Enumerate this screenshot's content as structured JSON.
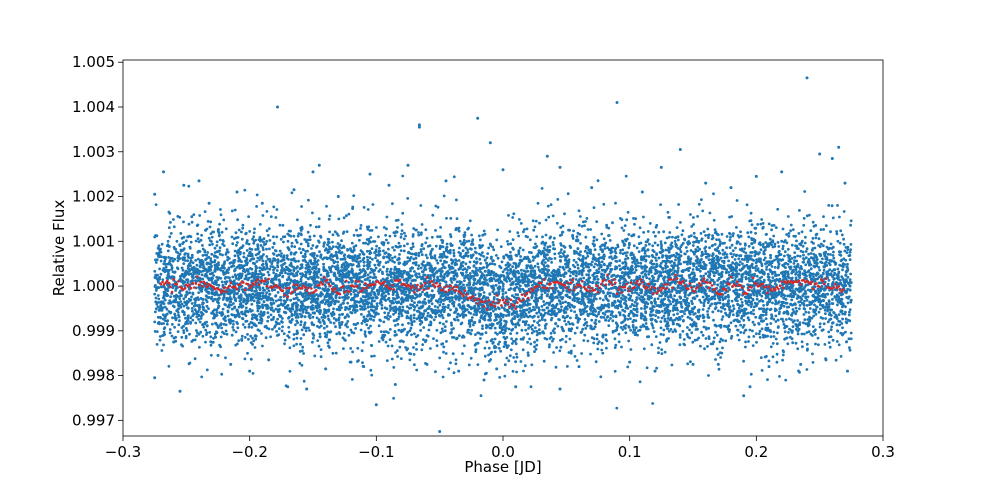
{
  "chart_data": {
    "type": "scatter",
    "title": "",
    "xlabel": "Phase [JD]",
    "ylabel": "Relative Flux",
    "xlim": [
      -0.3,
      0.3
    ],
    "ylim": [
      0.99665,
      1.00505
    ],
    "grid": false,
    "legend": "none",
    "x_ticks": [
      -0.3,
      -0.2,
      -0.1,
      0.0,
      0.1,
      0.2,
      0.3
    ],
    "x_tick_labels": [
      "−0.3",
      "−0.2",
      "−0.1",
      "0.0",
      "0.1",
      "0.2",
      "0.3"
    ],
    "y_ticks": [
      0.997,
      0.998,
      0.999,
      1.0,
      1.001,
      1.002,
      1.003,
      1.004,
      1.005
    ],
    "y_tick_labels": [
      "0.997",
      "0.998",
      "0.999",
      "1.000",
      "1.001",
      "1.002",
      "1.003",
      "1.004",
      "1.005"
    ],
    "series": [
      {
        "color": "#1f77b4",
        "description_of_distribution": {
          "x_range": [
            -0.275,
            0.275
          ],
          "center_flux": 1.0,
          "scatter_sigma": 0.00065
        },
        "points": [
          [
            -0.275,
            1.00205
          ],
          [
            -0.275,
            0.99795
          ],
          [
            -0.268,
            1.00255
          ],
          [
            -0.26,
            0.99875
          ],
          [
            -0.255,
            0.99765
          ],
          [
            -0.252,
            1.00225
          ],
          [
            -0.24,
            1.00235
          ],
          [
            -0.232,
            1.00185
          ],
          [
            -0.225,
            0.99845
          ],
          [
            -0.215,
            0.99825
          ],
          [
            -0.21,
            1.0021
          ],
          [
            -0.2,
            0.9981
          ],
          [
            -0.19,
            1.00185
          ],
          [
            -0.185,
            0.99835
          ],
          [
            -0.178,
            1.004
          ],
          [
            -0.17,
            0.99775
          ],
          [
            -0.165,
            1.00215
          ],
          [
            -0.155,
            0.9977
          ],
          [
            -0.15,
            1.00255
          ],
          [
            -0.145,
            1.0027
          ],
          [
            -0.14,
            0.99815
          ],
          [
            -0.13,
            1.002
          ],
          [
            -0.12,
            0.9983
          ],
          [
            -0.11,
            0.9982
          ],
          [
            -0.105,
            1.0025
          ],
          [
            -0.1,
            0.99735
          ],
          [
            -0.09,
            1.00225
          ],
          [
            -0.085,
            0.9978
          ],
          [
            -0.075,
            1.0027
          ],
          [
            -0.066,
            1.0036
          ],
          [
            -0.066,
            1.00355
          ],
          [
            -0.06,
            0.99825
          ],
          [
            -0.05,
            0.99675
          ],
          [
            -0.045,
            1.00235
          ],
          [
            -0.035,
            0.9981
          ],
          [
            -0.02,
            1.00375
          ],
          [
            -0.015,
            0.9979
          ],
          [
            -0.01,
            1.0032
          ],
          [
            -0.005,
            0.99815
          ],
          [
            0.0,
            1.0026
          ],
          [
            0.01,
            0.99775
          ],
          [
            0.02,
            0.99845
          ],
          [
            0.035,
            1.0029
          ],
          [
            0.045,
            0.9977
          ],
          [
            0.045,
            1.00265
          ],
          [
            0.06,
            0.9982
          ],
          [
            0.07,
            1.0022
          ],
          [
            0.09,
            1.0041
          ],
          [
            0.1,
            0.9983
          ],
          [
            0.11,
            1.0021
          ],
          [
            0.12,
            0.9981
          ],
          [
            0.125,
            1.00265
          ],
          [
            0.14,
            1.00305
          ],
          [
            0.15,
            0.99825
          ],
          [
            0.16,
            1.0023
          ],
          [
            0.17,
            0.99825
          ],
          [
            0.18,
            1.0022
          ],
          [
            0.19,
            0.99755
          ],
          [
            0.195,
            0.99775
          ],
          [
            0.2,
            1.00245
          ],
          [
            0.21,
            0.9982
          ],
          [
            0.22,
            1.00255
          ],
          [
            0.235,
            0.99825
          ],
          [
            0.24,
            1.00465
          ],
          [
            0.25,
            1.00295
          ],
          [
            0.255,
            0.99835
          ],
          [
            0.26,
            1.00285
          ],
          [
            0.265,
            1.0031
          ],
          [
            0.27,
            1.0023
          ],
          [
            0.272,
            0.9981
          ]
        ]
      },
      {
        "color": "#d62728",
        "note_binned_mean": true,
        "points": [
          [
            -0.27,
            1.0001
          ],
          [
            -0.26,
            1.0
          ],
          [
            -0.25,
            0.99995
          ],
          [
            -0.24,
            1.0001
          ],
          [
            -0.23,
            0.99995
          ],
          [
            -0.22,
            0.99985
          ],
          [
            -0.21,
            1.00005
          ],
          [
            -0.2,
            1.0
          ],
          [
            -0.19,
            1.0001
          ],
          [
            -0.18,
            1.0
          ],
          [
            -0.17,
            0.99985
          ],
          [
            -0.16,
            1.00005
          ],
          [
            -0.15,
            0.9999
          ],
          [
            -0.14,
            1.0001
          ],
          [
            -0.13,
            0.99985
          ],
          [
            -0.12,
            1.00005
          ],
          [
            -0.11,
            0.99995
          ],
          [
            -0.1,
            1.0001
          ],
          [
            -0.09,
            0.99995
          ],
          [
            -0.08,
            1.00005
          ],
          [
            -0.07,
            0.9999
          ],
          [
            -0.06,
            1.0001
          ],
          [
            -0.05,
            0.99995
          ],
          [
            -0.04,
            1.0
          ],
          [
            -0.03,
            0.99985
          ],
          [
            -0.02,
            0.99965
          ],
          [
            -0.01,
            0.99955
          ],
          [
            0.0,
            0.99965
          ],
          [
            0.01,
            0.9996
          ],
          [
            0.02,
            0.99985
          ],
          [
            0.03,
            1.0
          ],
          [
            0.04,
            1.0001
          ],
          [
            0.05,
            0.99995
          ],
          [
            0.06,
            1.00005
          ],
          [
            0.07,
            0.9999
          ],
          [
            0.08,
            1.0001
          ],
          [
            0.09,
            0.99995
          ],
          [
            0.1,
            1.0
          ],
          [
            0.11,
            1.0001
          ],
          [
            0.12,
            0.9999
          ],
          [
            0.13,
            1.00005
          ],
          [
            0.14,
            1.00015
          ],
          [
            0.15,
            0.99995
          ],
          [
            0.16,
            1.0001
          ],
          [
            0.17,
            0.99985
          ],
          [
            0.18,
            1.0001
          ],
          [
            0.19,
            0.9999
          ],
          [
            0.2,
            1.00005
          ],
          [
            0.21,
            0.9999
          ],
          [
            0.22,
            1.0
          ],
          [
            0.23,
            1.00015
          ],
          [
            0.24,
            1.0001
          ],
          [
            0.25,
            1.00005
          ],
          [
            0.26,
            1.0
          ],
          [
            0.27,
            0.9999
          ]
        ]
      }
    ]
  }
}
